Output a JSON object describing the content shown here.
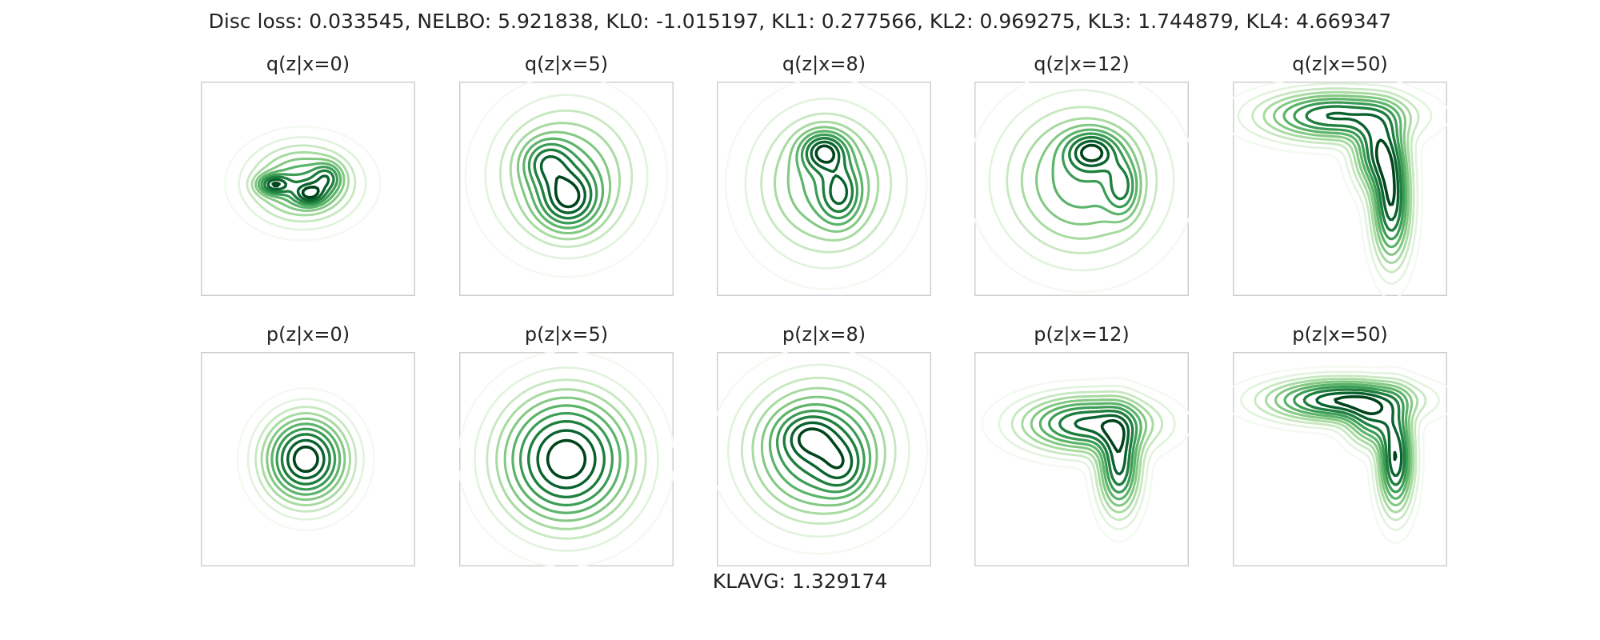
{
  "suptitle": "Disc loss: 0.033545, NELBO: 5.921838, KL0: -1.015197, KL1: 0.277566, KL2: 0.969275, KL3: 1.744879, KL4: 4.669347",
  "footer": "KLAVG: 1.329174",
  "colors": {
    "levels": [
      "#f3faf1",
      "#e2f3de",
      "#c7e8c0",
      "#a8dba1",
      "#83c882",
      "#5cb46a",
      "#3b9c55",
      "#1f7f3e",
      "#0a622f",
      "#00441b"
    ]
  },
  "chart_data": {
    "type": "contour",
    "grid": false,
    "panels": [
      {
        "row": "q",
        "title": "q(z|x=0)",
        "blobs": [
          {
            "cx": -0.05,
            "cy": 0.05,
            "sx": 0.3,
            "sy": 0.22,
            "w": 1.0
          },
          {
            "cx": -0.32,
            "cy": 0.04,
            "sx": 0.1,
            "sy": 0.06,
            "w": 1.0
          },
          {
            "cx": 0.02,
            "cy": -0.05,
            "sx": 0.1,
            "sy": 0.07,
            "w": 0.9
          },
          {
            "cx": 0.18,
            "cy": 0.1,
            "sx": 0.09,
            "sy": 0.09,
            "w": 0.7
          }
        ]
      },
      {
        "row": "q",
        "title": "q(z|x=5)",
        "blobs": [
          {
            "cx": 0.0,
            "cy": 0.12,
            "sx": 0.4,
            "sy": 0.4,
            "w": 1.0
          },
          {
            "cx": 0.02,
            "cy": -0.1,
            "sx": 0.18,
            "sy": 0.18,
            "w": 1.2
          },
          {
            "cx": -0.18,
            "cy": 0.25,
            "sx": 0.15,
            "sy": 0.14,
            "w": 0.8
          }
        ]
      },
      {
        "row": "q",
        "title": "q(z|x=8)",
        "blobs": [
          {
            "cx": 0.02,
            "cy": 0.05,
            "sx": 0.4,
            "sy": 0.42,
            "w": 1.0
          },
          {
            "cx": 0.0,
            "cy": 0.35,
            "sx": 0.14,
            "sy": 0.12,
            "w": 1.3
          },
          {
            "cx": 0.15,
            "cy": -0.05,
            "sx": 0.12,
            "sy": 0.18,
            "w": 0.9
          }
        ]
      },
      {
        "row": "q",
        "title": "q(z|x=12)",
        "blobs": [
          {
            "cx": 0.0,
            "cy": 0.08,
            "sx": 0.45,
            "sy": 0.44,
            "w": 1.0
          },
          {
            "cx": 0.1,
            "cy": 0.35,
            "sx": 0.16,
            "sy": 0.12,
            "w": 1.2
          },
          {
            "cx": 0.38,
            "cy": 0.02,
            "sx": 0.1,
            "sy": 0.18,
            "w": 0.8
          }
        ]
      },
      {
        "row": "q",
        "title": "q(z|x=50)",
        "blobs": [
          {
            "cx": -0.05,
            "cy": 0.68,
            "sx": 0.42,
            "sy": 0.14,
            "w": 1.0
          },
          {
            "cx": 0.35,
            "cy": 0.35,
            "sx": 0.14,
            "sy": 0.22,
            "w": 0.9
          },
          {
            "cx": 0.48,
            "cy": -0.12,
            "sx": 0.11,
            "sy": 0.35,
            "w": 1.1
          }
        ]
      },
      {
        "row": "p",
        "title": "p(z|x=0)",
        "blobs": [
          {
            "cx": -0.02,
            "cy": 0.0,
            "sx": 0.24,
            "sy": 0.25,
            "w": 1.0
          }
        ]
      },
      {
        "row": "p",
        "title": "p(z|x=5)",
        "blobs": [
          {
            "cx": 0.0,
            "cy": 0.0,
            "sx": 0.38,
            "sy": 0.38,
            "w": 1.0
          }
        ]
      },
      {
        "row": "p",
        "title": "p(z|x=8)",
        "blobs": [
          {
            "cx": -0.05,
            "cy": 0.08,
            "sx": 0.4,
            "sy": 0.38,
            "w": 1.0
          },
          {
            "cx": 0.18,
            "cy": -0.08,
            "sx": 0.15,
            "sy": 0.18,
            "w": 0.4
          },
          {
            "cx": -0.15,
            "cy": 0.22,
            "sx": 0.18,
            "sy": 0.14,
            "w": 0.4
          }
        ]
      },
      {
        "row": "p",
        "title": "p(z|x=12)",
        "blobs": [
          {
            "cx": 0.05,
            "cy": 0.33,
            "sx": 0.38,
            "sy": 0.16,
            "w": 1.0
          },
          {
            "cx": 0.35,
            "cy": -0.05,
            "sx": 0.12,
            "sy": 0.28,
            "w": 1.0
          }
        ]
      },
      {
        "row": "p",
        "title": "p(z|x=50)",
        "blobs": [
          {
            "cx": 0.0,
            "cy": 0.55,
            "sx": 0.42,
            "sy": 0.12,
            "w": 1.0
          },
          {
            "cx": 0.52,
            "cy": 0.0,
            "sx": 0.1,
            "sy": 0.3,
            "w": 1.0
          },
          {
            "cx": 0.3,
            "cy": 0.35,
            "sx": 0.15,
            "sy": 0.15,
            "w": 0.6
          }
        ]
      }
    ]
  }
}
